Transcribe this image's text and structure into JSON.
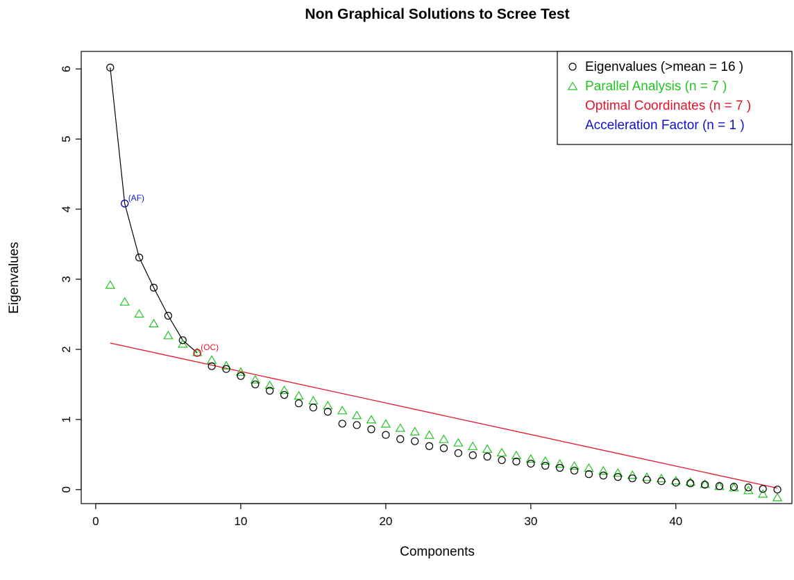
{
  "chart_data": {
    "type": "scatter",
    "title": "Non Graphical Solutions to Scree Test",
    "xlabel": "Components",
    "ylabel": "Eigenvalues",
    "xlim": [
      -1,
      48
    ],
    "ylim": [
      -0.2,
      6.25
    ],
    "xticks": [
      0,
      10,
      20,
      30,
      40
    ],
    "yticks": [
      0,
      1,
      2,
      3,
      4,
      5,
      6
    ],
    "grid": false,
    "legend_position": "top-right",
    "colors": {
      "eigen": "#000000",
      "parallel": "#22c222",
      "optimal": "#e8132b",
      "acceleration": "#1010c8"
    },
    "legend": [
      {
        "key": "eigen",
        "marker": "circle",
        "label": "Eigenvalues (>mean  =  16 )"
      },
      {
        "key": "parallel",
        "marker": "triangle",
        "label": "Parallel Analysis (n =  7 )"
      },
      {
        "key": "optimal",
        "marker": "none",
        "label": "Optimal Coordinates (n =  7 )"
      },
      {
        "key": "acceleration",
        "marker": "none",
        "label": "Acceleration Factor (n =  1 )"
      }
    ],
    "series": [
      {
        "name": "Eigenvalues (>mean  =  16 )",
        "marker": "circle",
        "x": [
          1,
          2,
          3,
          4,
          5,
          6,
          7,
          8,
          9,
          10,
          11,
          12,
          13,
          14,
          15,
          16,
          17,
          18,
          19,
          20,
          21,
          22,
          23,
          24,
          25,
          26,
          27,
          28,
          29,
          30,
          31,
          32,
          33,
          34,
          35,
          36,
          37,
          38,
          39,
          40,
          41,
          42,
          43,
          44,
          45,
          46,
          47
        ],
        "values": [
          6.02,
          4.08,
          3.31,
          2.88,
          2.48,
          2.13,
          1.95,
          1.76,
          1.72,
          1.62,
          1.5,
          1.41,
          1.35,
          1.23,
          1.17,
          1.11,
          0.94,
          0.92,
          0.86,
          0.78,
          0.72,
          0.69,
          0.62,
          0.59,
          0.52,
          0.49,
          0.47,
          0.42,
          0.4,
          0.37,
          0.34,
          0.31,
          0.27,
          0.22,
          0.2,
          0.18,
          0.16,
          0.14,
          0.12,
          0.1,
          0.09,
          0.07,
          0.05,
          0.04,
          0.03,
          0.01,
          0.0
        ]
      },
      {
        "name": "Parallel Analysis (n =  7 )",
        "marker": "triangle",
        "x": [
          1,
          2,
          3,
          4,
          5,
          6,
          7,
          8,
          9,
          10,
          11,
          12,
          13,
          14,
          15,
          16,
          17,
          18,
          19,
          20,
          21,
          22,
          23,
          24,
          25,
          26,
          27,
          28,
          29,
          30,
          31,
          32,
          33,
          34,
          35,
          36,
          37,
          38,
          39,
          40,
          41,
          42,
          43,
          44,
          45,
          46,
          47
        ],
        "values": [
          2.91,
          2.67,
          2.5,
          2.36,
          2.19,
          2.07,
          1.95,
          1.84,
          1.76,
          1.67,
          1.56,
          1.48,
          1.41,
          1.33,
          1.26,
          1.19,
          1.12,
          1.05,
          0.99,
          0.93,
          0.87,
          0.82,
          0.77,
          0.71,
          0.66,
          0.61,
          0.57,
          0.52,
          0.48,
          0.43,
          0.4,
          0.36,
          0.33,
          0.3,
          0.26,
          0.23,
          0.2,
          0.17,
          0.15,
          0.12,
          0.1,
          0.07,
          0.04,
          0.02,
          -0.02,
          -0.07,
          -0.12
        ]
      }
    ],
    "optimal_coordinates_line": {
      "x": [
        1,
        47
      ],
      "values": [
        2.09,
        0.02
      ]
    },
    "annotations": [
      {
        "text": "(AF)",
        "x": 2,
        "y": 4.08,
        "color_key": "acceleration"
      },
      {
        "text": "(OC)",
        "x": 7,
        "y": 1.95,
        "color_key": "optimal"
      }
    ]
  }
}
